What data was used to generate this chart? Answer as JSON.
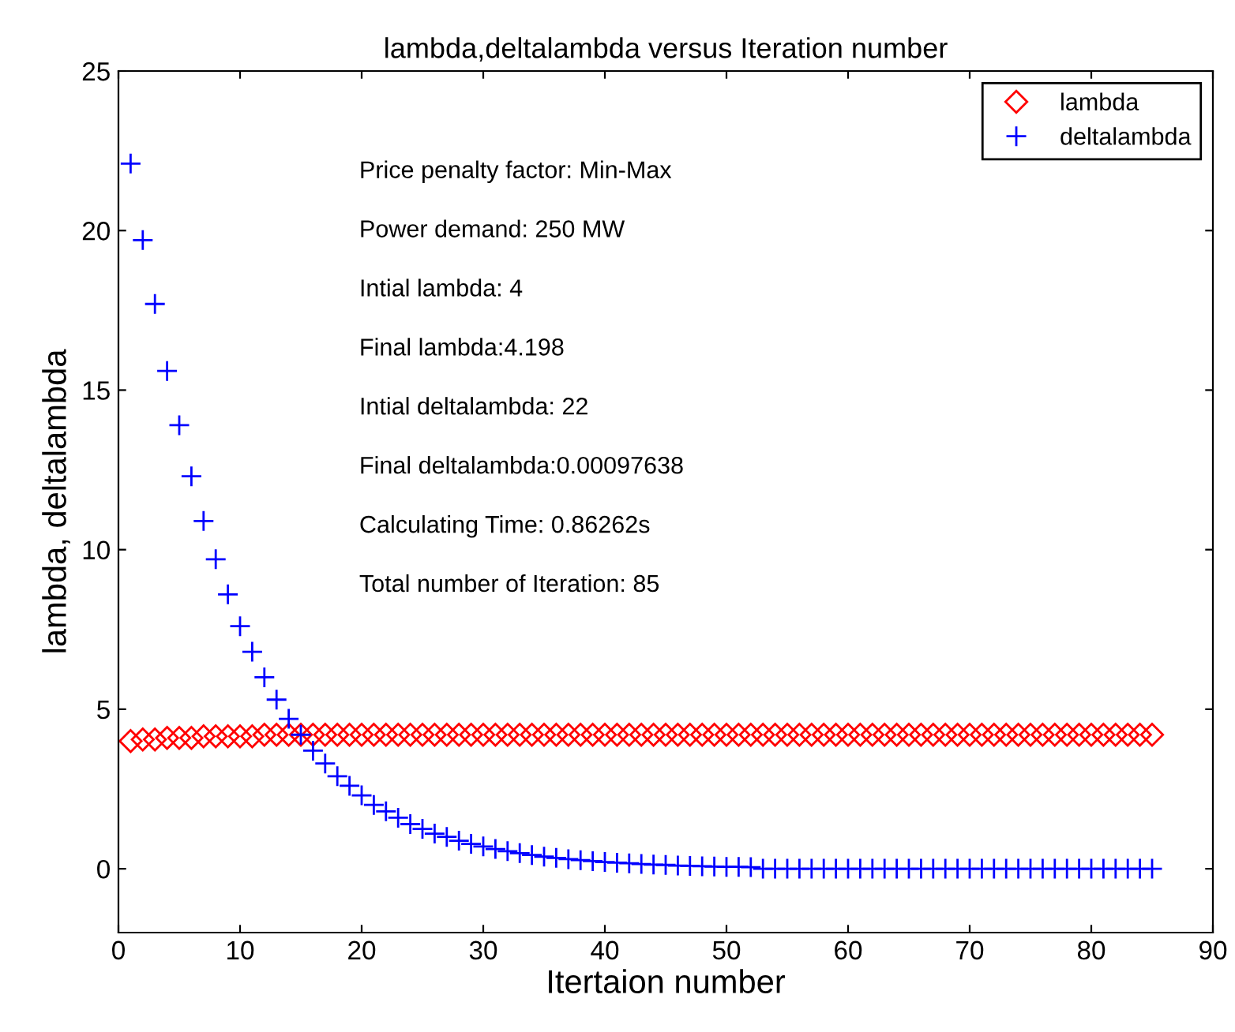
{
  "chart_data": {
    "type": "scatter",
    "title": "lambda,deltalambda versus Iteration number",
    "xlabel": "Itertaion number",
    "ylabel": "lambda, deltalambda",
    "x": [
      1,
      2,
      3,
      4,
      5,
      6,
      7,
      8,
      9,
      10,
      11,
      12,
      13,
      14,
      15,
      16,
      17,
      18,
      19,
      20,
      21,
      22,
      23,
      24,
      25,
      26,
      27,
      28,
      29,
      30,
      31,
      32,
      33,
      34,
      35,
      36,
      37,
      38,
      39,
      40,
      41,
      42,
      43,
      44,
      45,
      46,
      47,
      48,
      49,
      50,
      51,
      52,
      53,
      54,
      55,
      56,
      57,
      58,
      59,
      60,
      61,
      62,
      63,
      64,
      65,
      66,
      67,
      68,
      69,
      70,
      71,
      72,
      73,
      74,
      75,
      76,
      77,
      78,
      79,
      80,
      81,
      82,
      83,
      84,
      85
    ],
    "series": [
      {
        "name": "lambda",
        "color": "#ff0000",
        "marker": "diamond",
        "values": [
          4.0,
          4.05,
          4.05,
          4.1,
          4.1,
          4.1,
          4.15,
          4.15,
          4.15,
          4.15,
          4.15,
          4.2,
          4.2,
          4.2,
          4.2,
          4.2,
          4.2,
          4.2,
          4.2,
          4.2,
          4.2,
          4.2,
          4.2,
          4.2,
          4.2,
          4.2,
          4.2,
          4.2,
          4.2,
          4.2,
          4.2,
          4.2,
          4.2,
          4.2,
          4.2,
          4.2,
          4.2,
          4.2,
          4.2,
          4.2,
          4.2,
          4.2,
          4.2,
          4.2,
          4.2,
          4.2,
          4.2,
          4.2,
          4.2,
          4.2,
          4.2,
          4.2,
          4.2,
          4.2,
          4.2,
          4.2,
          4.2,
          4.2,
          4.2,
          4.2,
          4.2,
          4.2,
          4.2,
          4.2,
          4.2,
          4.2,
          4.2,
          4.2,
          4.2,
          4.2,
          4.2,
          4.2,
          4.2,
          4.2,
          4.2,
          4.2,
          4.2,
          4.2,
          4.2,
          4.2,
          4.2,
          4.2,
          4.2,
          4.2,
          4.2
        ]
      },
      {
        "name": "deltalambda",
        "color": "#0000ff",
        "marker": "cross",
        "values": [
          22.1,
          19.7,
          17.7,
          15.6,
          13.9,
          12.3,
          10.9,
          9.7,
          8.6,
          7.6,
          6.8,
          6.0,
          5.3,
          4.7,
          4.2,
          3.7,
          3.3,
          2.9,
          2.6,
          2.3,
          2.0,
          1.8,
          1.6,
          1.4,
          1.25,
          1.1,
          1.0,
          0.88,
          0.78,
          0.7,
          0.62,
          0.55,
          0.49,
          0.43,
          0.38,
          0.34,
          0.3,
          0.27,
          0.24,
          0.21,
          0.19,
          0.17,
          0.15,
          0.13,
          0.12,
          0.1,
          0.09,
          0.08,
          0.07,
          0.06,
          0.06,
          0.05,
          0,
          0,
          0,
          0,
          0,
          0,
          0,
          0,
          0,
          0,
          0,
          0,
          0,
          0,
          0,
          0,
          0,
          0,
          0,
          0,
          0,
          0,
          0,
          0,
          0,
          0,
          0,
          0,
          0,
          0,
          0,
          0,
          0
        ]
      }
    ],
    "xlim": [
      0,
      90
    ],
    "xticks": [
      0,
      10,
      20,
      30,
      40,
      50,
      60,
      70,
      80,
      90
    ],
    "ylim": [
      -2,
      25
    ],
    "yticks": [
      0,
      5,
      10,
      15,
      20,
      25
    ],
    "grid": false,
    "legend": "top right",
    "annotations": [
      "Price penalty factor: Min-Max",
      "Power demand: 250 MW",
      "Intial lambda: 4",
      "Final lambda:4.198",
      "Intial deltalambda: 22",
      "Final deltalambda:0.00097638",
      "Calculating Time: 0.86262s",
      "Total number of Iteration: 85"
    ]
  }
}
